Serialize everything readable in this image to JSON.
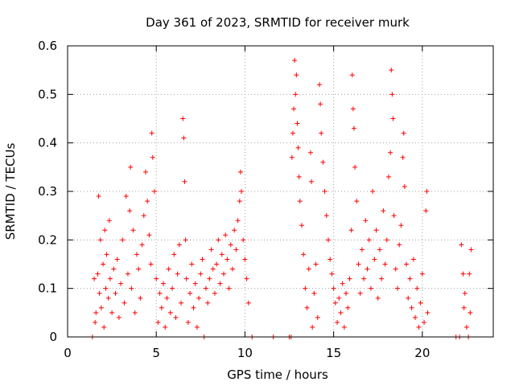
{
  "chart_data": {
    "type": "scatter",
    "title": "Day 361 of 2023, SRMTID for receiver murk",
    "xlabel": "GPS time / hours",
    "ylabel": "SRMTID / TECUs",
    "xlim": [
      0,
      24
    ],
    "ylim": [
      0,
      0.6
    ],
    "xticks": [
      0,
      5,
      10,
      15,
      20
    ],
    "yticks": [
      0,
      0.1,
      0.2,
      0.3,
      0.4,
      0.5,
      0.6
    ],
    "x_tick_labels": [
      "0",
      "5",
      "10",
      "15",
      "20"
    ],
    "y_tick_labels": [
      "0",
      "0.1",
      "0.2",
      "0.3",
      "0.4",
      "0.5",
      "0.6"
    ],
    "grid": true,
    "marker": "+",
    "color": "#ff0000",
    "series": [
      {
        "name": "SRMTID",
        "points": [
          [
            1.4,
            0.0
          ],
          [
            1.5,
            0.12
          ],
          [
            1.55,
            0.03
          ],
          [
            1.6,
            0.05
          ],
          [
            1.7,
            0.13
          ],
          [
            1.75,
            0.29
          ],
          [
            1.8,
            0.09
          ],
          [
            1.85,
            0.2
          ],
          [
            1.9,
            0.06
          ],
          [
            2.0,
            0.15
          ],
          [
            2.05,
            0.02
          ],
          [
            2.1,
            0.22
          ],
          [
            2.15,
            0.1
          ],
          [
            2.2,
            0.17
          ],
          [
            2.3,
            0.08
          ],
          [
            2.35,
            0.24
          ],
          [
            2.4,
            0.12
          ],
          [
            2.5,
            0.05
          ],
          [
            2.6,
            0.14
          ],
          [
            2.7,
            0.09
          ],
          [
            2.8,
            0.16
          ],
          [
            2.9,
            0.04
          ],
          [
            3.0,
            0.11
          ],
          [
            3.1,
            0.2
          ],
          [
            3.2,
            0.07
          ],
          [
            3.3,
            0.29
          ],
          [
            3.4,
            0.13
          ],
          [
            3.5,
            0.26
          ],
          [
            3.55,
            0.35
          ],
          [
            3.6,
            0.1
          ],
          [
            3.7,
            0.22
          ],
          [
            3.8,
            0.05
          ],
          [
            3.9,
            0.17
          ],
          [
            4.0,
            0.14
          ],
          [
            4.1,
            0.08
          ],
          [
            4.2,
            0.19
          ],
          [
            4.3,
            0.25
          ],
          [
            4.4,
            0.34
          ],
          [
            4.5,
            0.28
          ],
          [
            4.6,
            0.21
          ],
          [
            4.7,
            0.15
          ],
          [
            4.75,
            0.42
          ],
          [
            4.8,
            0.37
          ],
          [
            4.9,
            0.3
          ],
          [
            5.0,
            0.12
          ],
          [
            5.1,
            0.03
          ],
          [
            5.2,
            0.09
          ],
          [
            5.3,
            0.06
          ],
          [
            5.4,
            0.11
          ],
          [
            5.5,
            0.02
          ],
          [
            5.6,
            0.08
          ],
          [
            5.7,
            0.14
          ],
          [
            5.8,
            0.05
          ],
          [
            5.9,
            0.1
          ],
          [
            6.0,
            0.17
          ],
          [
            6.1,
            0.04
          ],
          [
            6.2,
            0.13
          ],
          [
            6.3,
            0.19
          ],
          [
            6.4,
            0.07
          ],
          [
            6.5,
            0.45
          ],
          [
            6.55,
            0.41
          ],
          [
            6.6,
            0.32
          ],
          [
            6.65,
            0.2
          ],
          [
            6.7,
            0.12
          ],
          [
            6.8,
            0.03
          ],
          [
            6.9,
            0.09
          ],
          [
            7.0,
            0.15
          ],
          [
            7.1,
            0.06
          ],
          [
            7.2,
            0.11
          ],
          [
            7.3,
            0.02
          ],
          [
            7.4,
            0.08
          ],
          [
            7.5,
            0.13
          ],
          [
            7.6,
            0.16
          ],
          [
            7.7,
            0.0
          ],
          [
            7.8,
            0.1
          ],
          [
            7.9,
            0.07
          ],
          [
            8.0,
            0.12
          ],
          [
            8.1,
            0.18
          ],
          [
            8.2,
            0.14
          ],
          [
            8.3,
            0.09
          ],
          [
            8.4,
            0.15
          ],
          [
            8.5,
            0.2
          ],
          [
            8.6,
            0.11
          ],
          [
            8.7,
            0.17
          ],
          [
            8.8,
            0.13
          ],
          [
            8.9,
            0.21
          ],
          [
            9.0,
            0.16
          ],
          [
            9.1,
            0.1
          ],
          [
            9.2,
            0.19
          ],
          [
            9.3,
            0.14
          ],
          [
            9.4,
            0.22
          ],
          [
            9.5,
            0.18
          ],
          [
            9.6,
            0.24
          ],
          [
            9.7,
            0.28
          ],
          [
            9.75,
            0.34
          ],
          [
            9.8,
            0.3
          ],
          [
            9.9,
            0.2
          ],
          [
            10.0,
            0.16
          ],
          [
            10.1,
            0.12
          ],
          [
            10.2,
            0.07
          ],
          [
            10.4,
            0.0
          ],
          [
            11.6,
            0.0
          ],
          [
            12.5,
            0.0
          ],
          [
            12.6,
            0.0
          ],
          [
            12.65,
            0.37
          ],
          [
            12.7,
            0.42
          ],
          [
            12.75,
            0.47
          ],
          [
            12.8,
            0.57
          ],
          [
            12.85,
            0.5
          ],
          [
            12.9,
            0.54
          ],
          [
            12.95,
            0.44
          ],
          [
            13.0,
            0.39
          ],
          [
            13.05,
            0.33
          ],
          [
            13.1,
            0.28
          ],
          [
            13.2,
            0.23
          ],
          [
            13.3,
            0.17
          ],
          [
            13.4,
            0.1
          ],
          [
            13.5,
            0.06
          ],
          [
            13.6,
            0.14
          ],
          [
            13.7,
            0.38
          ],
          [
            13.75,
            0.32
          ],
          [
            13.8,
            0.02
          ],
          [
            13.9,
            0.09
          ],
          [
            14.0,
            0.15
          ],
          [
            14.1,
            0.04
          ],
          [
            14.2,
            0.52
          ],
          [
            14.25,
            0.48
          ],
          [
            14.3,
            0.42
          ],
          [
            14.4,
            0.36
          ],
          [
            14.5,
            0.3
          ],
          [
            14.6,
            0.25
          ],
          [
            14.7,
            0.2
          ],
          [
            14.8,
            0.16
          ],
          [
            14.9,
            0.13
          ],
          [
            15.0,
            0.1
          ],
          [
            15.1,
            0.07
          ],
          [
            15.2,
            0.03
          ],
          [
            15.3,
            0.08
          ],
          [
            15.4,
            0.05
          ],
          [
            15.5,
            0.11
          ],
          [
            15.6,
            0.02
          ],
          [
            15.7,
            0.09
          ],
          [
            15.8,
            0.06
          ],
          [
            15.9,
            0.12
          ],
          [
            16.0,
            0.22
          ],
          [
            16.05,
            0.54
          ],
          [
            16.1,
            0.47
          ],
          [
            16.15,
            0.43
          ],
          [
            16.2,
            0.35
          ],
          [
            16.3,
            0.28
          ],
          [
            16.4,
            0.15
          ],
          [
            16.5,
            0.09
          ],
          [
            16.6,
            0.18
          ],
          [
            16.7,
            0.12
          ],
          [
            16.8,
            0.24
          ],
          [
            16.9,
            0.14
          ],
          [
            17.0,
            0.2
          ],
          [
            17.1,
            0.1
          ],
          [
            17.2,
            0.3
          ],
          [
            17.3,
            0.16
          ],
          [
            17.4,
            0.22
          ],
          [
            17.5,
            0.08
          ],
          [
            17.6,
            0.18
          ],
          [
            17.7,
            0.12
          ],
          [
            17.8,
            0.26
          ],
          [
            17.9,
            0.15
          ],
          [
            18.0,
            0.2
          ],
          [
            18.1,
            0.33
          ],
          [
            18.2,
            0.38
          ],
          [
            18.25,
            0.55
          ],
          [
            18.3,
            0.5
          ],
          [
            18.35,
            0.45
          ],
          [
            18.4,
            0.25
          ],
          [
            18.5,
            0.14
          ],
          [
            18.6,
            0.1
          ],
          [
            18.7,
            0.19
          ],
          [
            18.8,
            0.23
          ],
          [
            18.9,
            0.37
          ],
          [
            18.95,
            0.42
          ],
          [
            19.0,
            0.31
          ],
          [
            19.1,
            0.15
          ],
          [
            19.2,
            0.08
          ],
          [
            19.3,
            0.12
          ],
          [
            19.4,
            0.06
          ],
          [
            19.5,
            0.16
          ],
          [
            19.6,
            0.04
          ],
          [
            19.7,
            0.1
          ],
          [
            19.8,
            0.02
          ],
          [
            19.9,
            0.07
          ],
          [
            20.0,
            0.13
          ],
          [
            20.1,
            0.03
          ],
          [
            20.2,
            0.26
          ],
          [
            20.25,
            0.3
          ],
          [
            20.3,
            0.05
          ],
          [
            21.9,
            0.0
          ],
          [
            22.1,
            0.0
          ],
          [
            22.2,
            0.19
          ],
          [
            22.3,
            0.13
          ],
          [
            22.35,
            0.06
          ],
          [
            22.4,
            0.09
          ],
          [
            22.5,
            0.02
          ],
          [
            22.6,
            0.0
          ],
          [
            22.65,
            0.13
          ],
          [
            22.7,
            0.05
          ],
          [
            22.75,
            0.18
          ]
        ]
      }
    ]
  }
}
